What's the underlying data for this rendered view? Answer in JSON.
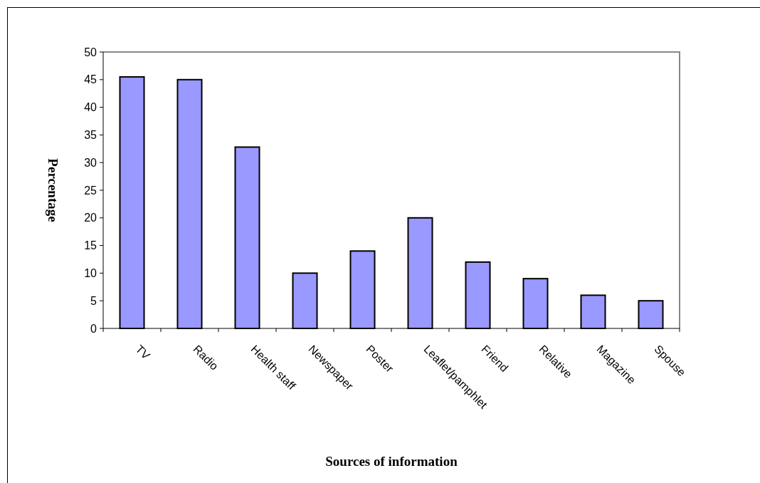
{
  "chart_data": {
    "type": "bar",
    "xlabel": "Sources of information",
    "ylabel": "Percentage",
    "categories": [
      "TV",
      "Radio",
      "Health staff",
      "Newspaper",
      "Poster",
      "Leaflet/pamphlet",
      "Friend",
      "Relative",
      "Magazine",
      "Spouse"
    ],
    "values": [
      45.5,
      45,
      32.8,
      10,
      14,
      20,
      12,
      9,
      6,
      5
    ],
    "color": "#9999ff",
    "ylim": [
      0,
      50
    ],
    "yticks": [
      0,
      5,
      10,
      15,
      20,
      25,
      30,
      35,
      40,
      45,
      50
    ],
    "grid": false
  }
}
